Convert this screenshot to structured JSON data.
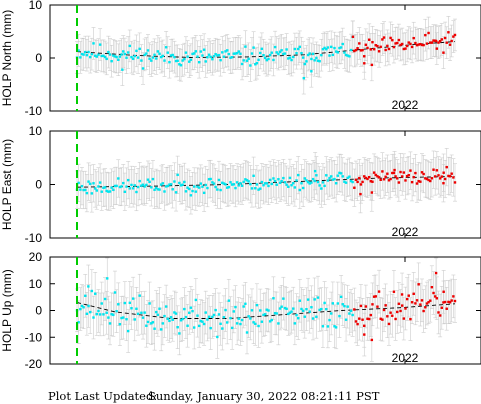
{
  "footer": {
    "label": "Plot Last Updated:",
    "value": "Sunday, January 30, 2022 08:21:11 PST"
  },
  "colors": {
    "main_points": "#00e5ee",
    "recent_points": "#ee0000",
    "error_bars": "#cccccc",
    "trend_line": "#000000",
    "marker_line": "#00cc00"
  },
  "chart_data": [
    {
      "type": "scatter",
      "ylabel": "HOLP North (mm)",
      "ylim": [
        -10,
        10
      ],
      "yticks": [
        -10,
        0,
        10
      ],
      "xtick_labels": [
        "2022"
      ],
      "error_bar_half_width": 3,
      "trend": [
        [
          0.0,
          1.2
        ],
        [
          0.15,
          0.5
        ],
        [
          0.3,
          0.1
        ],
        [
          0.45,
          0.2
        ],
        [
          0.6,
          0.6
        ],
        [
          0.75,
          1.6
        ],
        [
          0.9,
          2.6
        ],
        [
          1.0,
          3.1
        ]
      ],
      "marker_x": 0.0,
      "recent_from_x": 0.73,
      "noise": 1.1,
      "seed": 11,
      "n_points": 230,
      "outliers": [
        [
          0.12,
          -2.2
        ],
        [
          0.6,
          -3.8
        ],
        [
          0.62,
          -2.5
        ],
        [
          0.73,
          4.0
        ],
        [
          0.76,
          -1.0
        ],
        [
          0.78,
          -1.3
        ],
        [
          0.95,
          3.2
        ]
      ]
    },
    {
      "type": "scatter",
      "ylabel": "HOLP East (mm)",
      "ylim": [
        -10,
        10
      ],
      "yticks": [
        -10,
        0,
        10
      ],
      "xtick_labels": [
        "2022"
      ],
      "error_bar_half_width": 3.5,
      "trend": [
        [
          0.0,
          -0.5
        ],
        [
          0.2,
          -0.3
        ],
        [
          0.4,
          0.0
        ],
        [
          0.6,
          0.6
        ],
        [
          0.8,
          1.2
        ],
        [
          1.0,
          1.5
        ]
      ],
      "marker_x": 0.0,
      "recent_from_x": 0.73,
      "noise": 0.9,
      "seed": 23,
      "n_points": 230,
      "outliers": [
        [
          0.63,
          2.5
        ],
        [
          0.75,
          -1.8
        ],
        [
          0.78,
          -1.5
        ],
        [
          0.84,
          2.7
        ],
        [
          0.97,
          2.2
        ]
      ]
    },
    {
      "type": "scatter",
      "ylabel": "HOLP Up (mm)",
      "ylim": [
        -20,
        20
      ],
      "yticks": [
        -20,
        -10,
        0,
        10,
        20
      ],
      "xtick_labels": [
        "2022"
      ],
      "error_bar_half_width": 8,
      "trend": [
        [
          0.0,
          3.0
        ],
        [
          0.1,
          -0.5
        ],
        [
          0.25,
          -3.0
        ],
        [
          0.4,
          -3.0
        ],
        [
          0.55,
          -1.5
        ],
        [
          0.7,
          0.0
        ],
        [
          0.85,
          1.0
        ],
        [
          1.0,
          2.5
        ]
      ],
      "marker_x": 0.0,
      "recent_from_x": 0.73,
      "noise": 4.0,
      "seed": 37,
      "n_points": 230,
      "outliers": [
        [
          0.03,
          9.0
        ],
        [
          0.08,
          12.0
        ],
        [
          0.76,
          -9.0
        ],
        [
          0.78,
          -11.0
        ],
        [
          0.86,
          6.0
        ],
        [
          0.95,
          14.0
        ],
        [
          0.97,
          7.0
        ]
      ]
    }
  ]
}
